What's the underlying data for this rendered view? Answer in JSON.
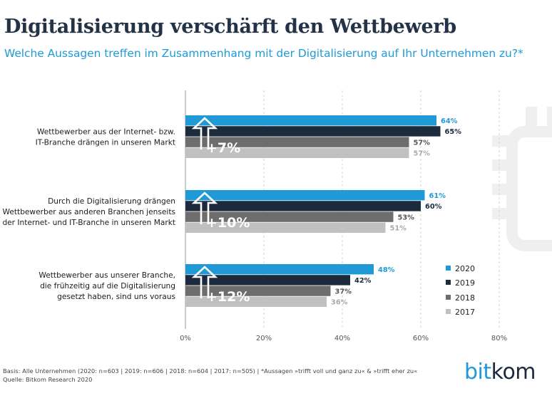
{
  "title": "Digitalisierung verschärft den Wettbewerb",
  "subtitle": "Welche Aussagen treffen im Zusammenhang mit der Digitalisierung auf Ihr Unternehmen zu?*",
  "footnote": {
    "basis": "Basis: Alle Unternehmen (2020: n=603 | 2019: n=606 | 2018: n=604 | 2017: n=505) | *Aussagen »trifft voll und ganz zu« & »trifft eher zu«",
    "source": "Quelle: Bitkom Research 2020"
  },
  "logo": {
    "prefix": "bit",
    "suffix": "kom"
  },
  "colors": {
    "2020": "#1f9ad6",
    "2019": "#1b2a3c",
    "2018": "#6d6d6d",
    "2017": "#c0c0c0",
    "title": "#233246",
    "decor": "#efefef"
  },
  "chart_data": {
    "type": "bar",
    "orientation": "horizontal",
    "categories": [
      [
        "Wettbewerber aus der Internet- bzw.",
        "IT-Branche drängen in unseren Markt"
      ],
      [
        "Durch die Digitalisierung drängen",
        "Wettbewerber aus anderen Branchen jenseits",
        "der Internet- und IT-Branche in unseren Markt"
      ],
      [
        "Wettbewerber aus unserer Branche,",
        "die frühzeitig auf die Digitalisierung",
        "gesetzt haben, sind uns voraus"
      ]
    ],
    "series": [
      {
        "name": "2020",
        "values": [
          64,
          61,
          48
        ],
        "labels": [
          "64%",
          "61%",
          "48%"
        ]
      },
      {
        "name": "2019",
        "values": [
          65,
          60,
          42
        ],
        "labels": [
          "65%",
          "60%",
          "42%"
        ]
      },
      {
        "name": "2018",
        "values": [
          57,
          53,
          37
        ],
        "labels": [
          "57%",
          "53%",
          "37%"
        ]
      },
      {
        "name": "2017",
        "values": [
          57,
          51,
          36
        ],
        "labels": [
          "57%",
          "51%",
          "36%"
        ]
      }
    ],
    "changes": [
      "+7%",
      "+10%",
      "+12%"
    ],
    "xlim": [
      0,
      80
    ],
    "ticks": [
      0,
      20,
      40,
      60,
      80
    ],
    "tick_labels": [
      "0%",
      "20%",
      "40%",
      "60%",
      "80%"
    ],
    "grid": true,
    "legend_position": "right"
  }
}
